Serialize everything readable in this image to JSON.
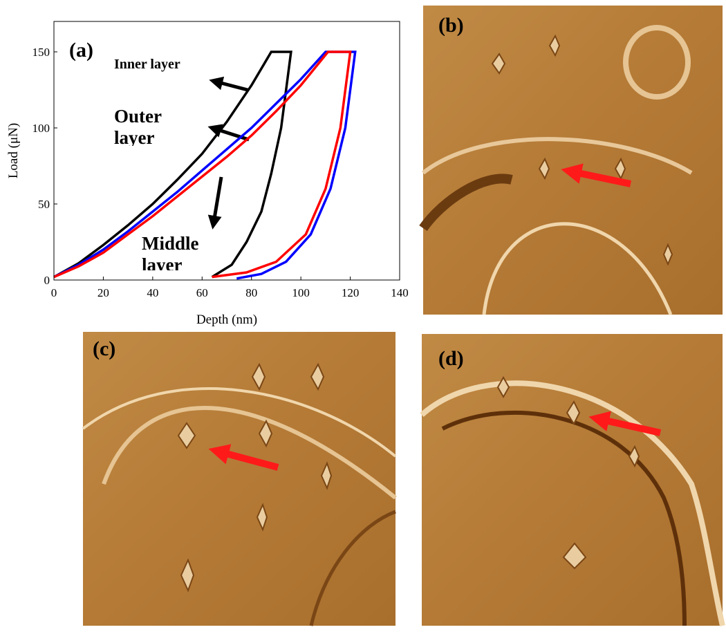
{
  "chart_data": {
    "type": "line",
    "panel_label": "(a)",
    "x_label": "Depth (nm)",
    "y_label": "Load (μN)",
    "xlim": [
      0,
      140
    ],
    "xticks": [
      0,
      20,
      40,
      60,
      80,
      100,
      120,
      140
    ],
    "ylim": [
      0,
      170
    ],
    "yticks": [
      0,
      50,
      100,
      150
    ],
    "series": [
      {
        "name": "Inner layer",
        "color": "#000000",
        "x": [
          0,
          10,
          20,
          30,
          40,
          50,
          60,
          70,
          80,
          88,
          96,
          92,
          88,
          84,
          78,
          72,
          64
        ],
        "values": [
          2,
          11,
          23,
          36,
          50,
          66,
          83,
          104,
          128,
          150,
          150,
          100,
          70,
          45,
          25,
          10,
          2
        ]
      },
      {
        "name": "Outer layer",
        "color": "#0000ff",
        "x": [
          0,
          10,
          20,
          30,
          40,
          50,
          60,
          70,
          80,
          90,
          100,
          110,
          122,
          118,
          112,
          104,
          94,
          84,
          74
        ],
        "values": [
          2,
          10,
          20,
          32,
          45,
          58,
          72,
          86,
          100,
          116,
          132,
          150,
          150,
          100,
          60,
          30,
          12,
          4,
          1
        ]
      },
      {
        "name": "Middle layer",
        "color": "#ff0000",
        "x": [
          0,
          10,
          20,
          30,
          40,
          50,
          60,
          70,
          80,
          90,
          100,
          111,
          120,
          116,
          110,
          102,
          90,
          78,
          64
        ],
        "values": [
          2,
          9,
          18,
          30,
          42,
          55,
          68,
          81,
          95,
          111,
          128,
          150,
          150,
          100,
          60,
          30,
          12,
          5,
          2
        ]
      }
    ],
    "annotations": [
      "Inner layer",
      "Outer layer",
      "Middle layer"
    ]
  },
  "panels": [
    {
      "label": "(b)"
    },
    {
      "label": "(c)"
    },
    {
      "label": "(d)"
    }
  ]
}
